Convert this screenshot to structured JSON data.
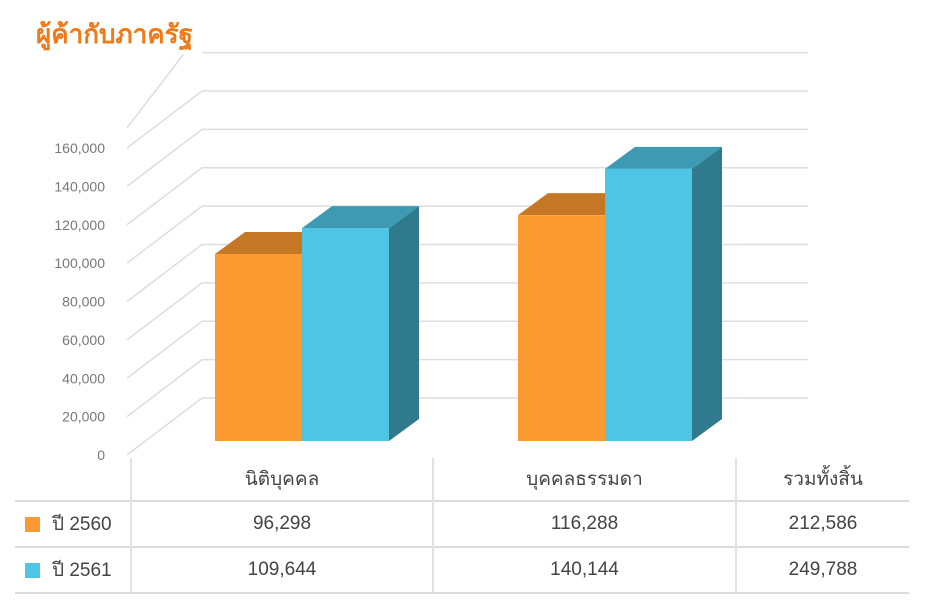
{
  "title": "ผู้ค้ากับภาครัฐ",
  "chart_data": {
    "type": "bar",
    "style": "3d-clustered-column",
    "categories": [
      "นิติบุคคล",
      "บุคคลธรรมดา"
    ],
    "series": [
      {
        "name": "ปี 2560",
        "values": [
          96298,
          116288
        ],
        "color": "#fb9a31"
      },
      {
        "name": "ปี 2561",
        "values": [
          109644,
          140144
        ],
        "color": "#4ec5e4"
      }
    ],
    "ylim": [
      0,
      160000
    ],
    "yticks": [
      "0",
      "20,000",
      "40,000",
      "60,000",
      "80,000",
      "100,000",
      "120,000",
      "140,000",
      "160,000"
    ],
    "grid": true,
    "legend": "data-table"
  },
  "table": {
    "headers": [
      "นิติบุคคล",
      "บุคคลธรรมดา",
      "รวมทั้งสิ้น"
    ],
    "rows": [
      {
        "label": "ปี 2560",
        "color": "#fb9a31",
        "values": [
          "96,298",
          "116,288",
          "212,586"
        ]
      },
      {
        "label": "ปี 2561",
        "color": "#4ec5e4",
        "values": [
          "109,644",
          "140,144",
          "249,788"
        ]
      }
    ]
  }
}
